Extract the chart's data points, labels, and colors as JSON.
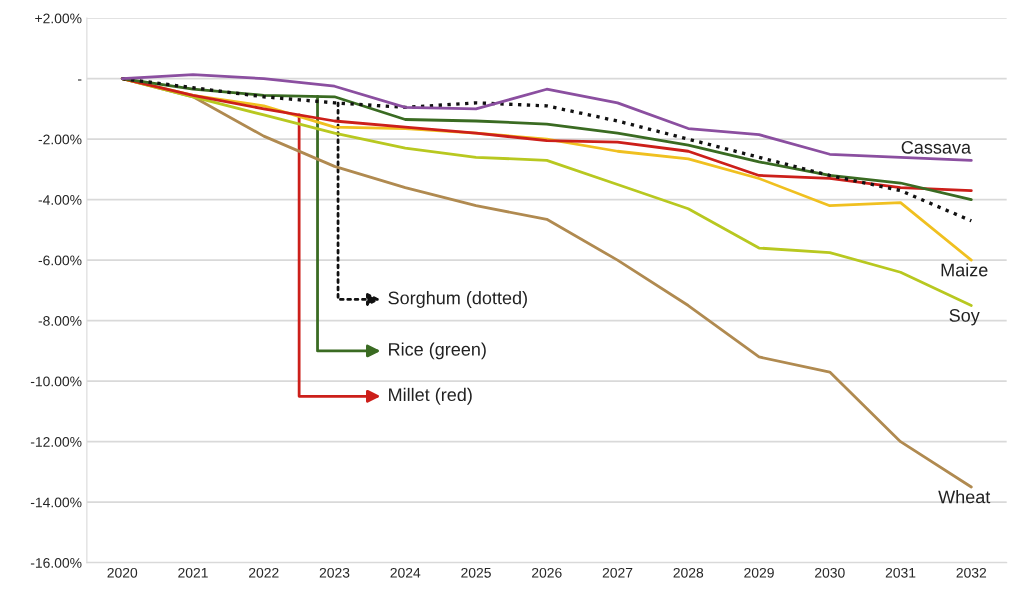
{
  "chart_data": {
    "type": "line",
    "categories": [
      "2020",
      "2021",
      "2022",
      "2023",
      "2024",
      "2025",
      "2026",
      "2027",
      "2028",
      "2029",
      "2030",
      "2031",
      "2032"
    ],
    "series": [
      {
        "name": "Cassava",
        "color": "#8b4fa0",
        "values": [
          0,
          0.13,
          0,
          -0.25,
          -0.95,
          -1.0,
          -0.35,
          -0.8,
          -1.65,
          -1.85,
          -2.5,
          -2.6,
          -2.7
        ]
      },
      {
        "name": "Sorghum (dotted)",
        "color": "#111111",
        "line_style": "dotted",
        "values": [
          0,
          -0.3,
          -0.6,
          -0.8,
          -0.95,
          -0.8,
          -0.9,
          -1.4,
          -2.0,
          -2.6,
          -3.2,
          -3.7,
          -4.7
        ]
      },
      {
        "name": "Rice (green)",
        "color": "#3a6b22",
        "values": [
          0,
          -0.35,
          -0.55,
          -0.6,
          -1.35,
          -1.4,
          -1.5,
          -1.8,
          -2.2,
          -2.75,
          -3.2,
          -3.45,
          -4.0
        ]
      },
      {
        "name": "Millet (red)",
        "color": "#cc1f1a",
        "values": [
          0,
          -0.55,
          -1.0,
          -1.4,
          -1.6,
          -1.8,
          -2.05,
          -2.1,
          -2.4,
          -3.2,
          -3.3,
          -3.6,
          -3.7
        ]
      },
      {
        "name": "Maize",
        "color": "#f0c020",
        "values": [
          0,
          -0.55,
          -0.9,
          -1.6,
          -1.65,
          -1.8,
          -2.0,
          -2.4,
          -2.65,
          -3.3,
          -4.2,
          -4.1,
          -6.0
        ]
      },
      {
        "name": "Soy",
        "color": "#b8c820",
        "values": [
          0,
          -0.6,
          -1.2,
          -1.8,
          -2.3,
          -2.6,
          -2.7,
          -3.5,
          -4.3,
          -5.6,
          -5.75,
          -6.4,
          -7.5
        ]
      },
      {
        "name": "Wheat",
        "color": "#b08a50",
        "values": [
          0,
          -0.6,
          -1.9,
          -2.9,
          -3.6,
          -4.2,
          -4.65,
          -6.0,
          -7.5,
          -9.2,
          -9.7,
          -12.0,
          -13.5
        ]
      }
    ],
    "ylim": [
      -16,
      2
    ],
    "yticks": [
      {
        "value": 2,
        "label": "+2.00%"
      },
      {
        "value": 0,
        "label": "-"
      },
      {
        "value": -2,
        "label": "-2.00%"
      },
      {
        "value": -4,
        "label": "-4.00%"
      },
      {
        "value": -6,
        "label": "-6.00%"
      },
      {
        "value": -8,
        "label": "-8.00%"
      },
      {
        "value": -10,
        "label": "-10.00%"
      },
      {
        "value": -12,
        "label": "-12.00%"
      },
      {
        "value": -14,
        "label": "-14.00%"
      },
      {
        "value": -16,
        "label": "-16.00%"
      }
    ],
    "grid": "y",
    "legend": "left",
    "marker": "none",
    "line_style": "solid"
  }
}
